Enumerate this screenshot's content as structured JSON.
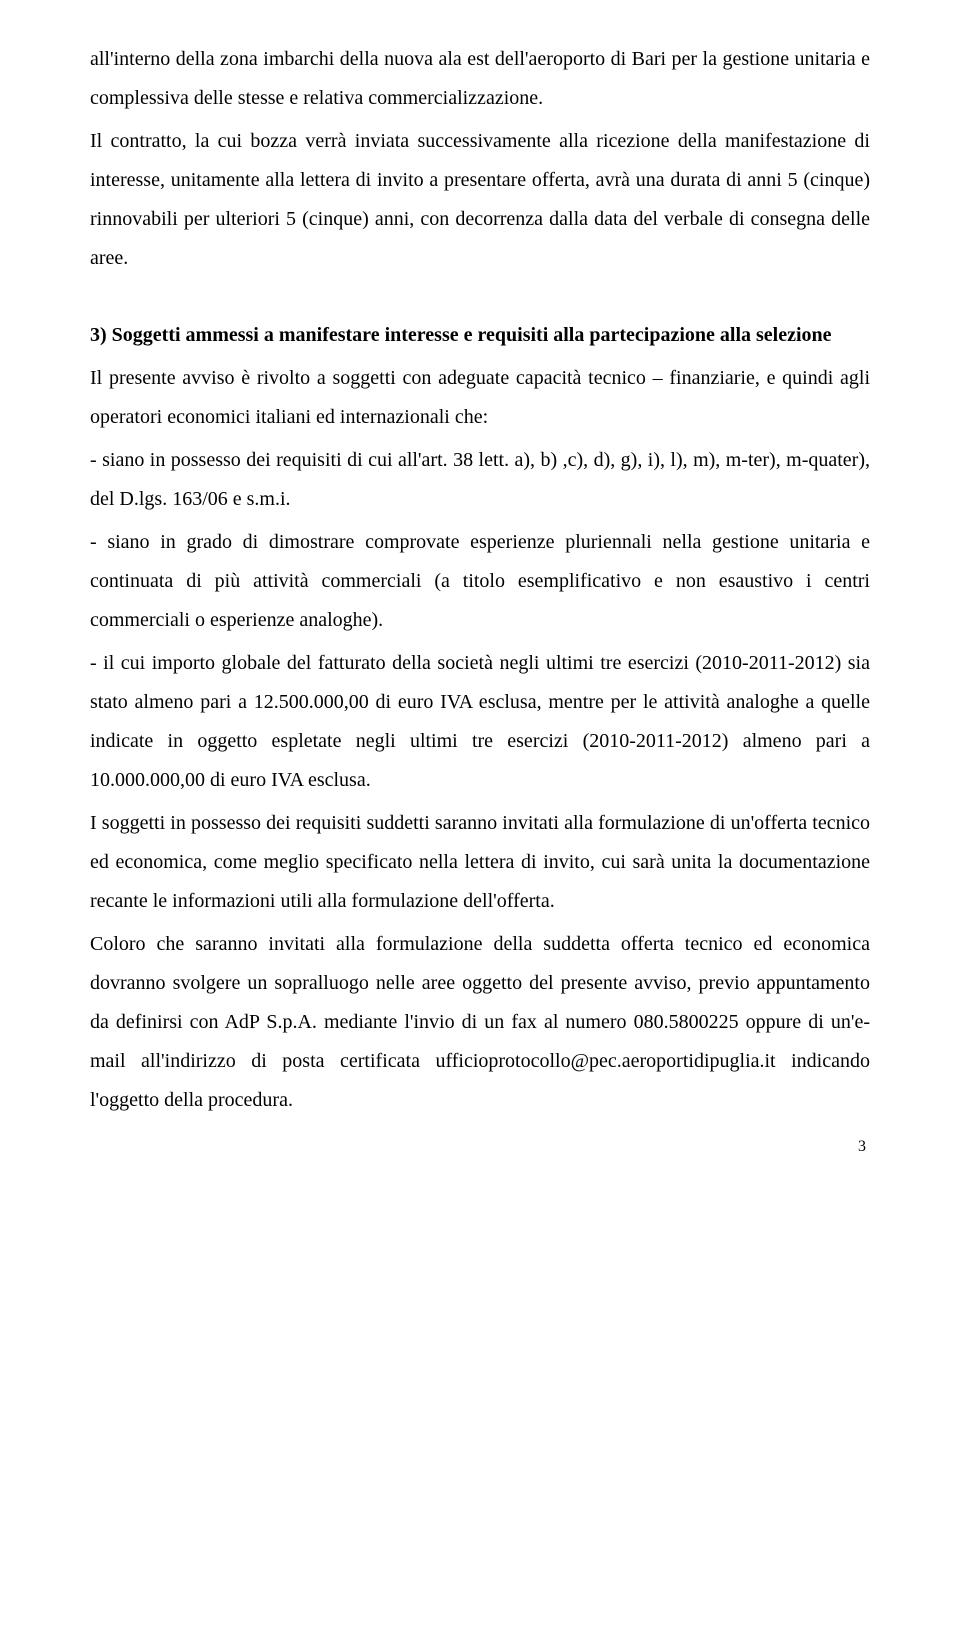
{
  "para1": "all'interno della zona imbarchi della nuova ala est dell'aeroporto di Bari per la gestione unitaria e complessiva delle stesse e relativa commercializzazione.",
  "para2": "Il contratto, la cui bozza verrà inviata successivamente alla ricezione della manifestazione di interesse, unitamente alla lettera di invito a presentare offerta, avrà una durata di anni 5 (cinque) rinnovabili per ulteriori 5 (cinque) anni, con decorrenza dalla data del verbale di consegna delle aree.",
  "sec3_title": "3) Soggetti ammessi a manifestare interesse e requisiti alla partecipazione alla selezione",
  "sec3_p1": "Il presente avviso è rivolto a soggetti con adeguate capacità tecnico – finanziarie, e quindi agli operatori economici italiani ed internazionali che:",
  "sec3_b1": "- siano in possesso dei requisiti di cui all'art. 38 lett. a), b) ,c), d), g), i), l), m), m-ter), m-quater), del D.lgs. 163/06 e s.m.i.",
  "sec3_b2": "- siano in grado di dimostrare comprovate esperienze pluriennali nella gestione unitaria e continuata di più attività commerciali (a titolo esemplificativo e non esaustivo i centri commerciali o esperienze analoghe).",
  "sec3_b3": "- il cui importo globale del fatturato della società negli ultimi tre esercizi (2010-2011-2012) sia stato almeno pari a 12.500.000,00 di euro IVA esclusa, mentre per le attività analoghe a quelle indicate in oggetto espletate negli ultimi tre esercizi (2010-2011-2012) almeno pari a 10.000.000,00 di euro IVA esclusa.",
  "sec3_p2": "I soggetti in possesso dei requisiti suddetti saranno invitati alla formulazione di un'offerta tecnico ed economica, come meglio specificato nella lettera di invito, cui sarà unita la documentazione recante le informazioni utili alla formulazione dell'offerta.",
  "sec3_p3": "Coloro che saranno invitati alla formulazione della suddetta offerta tecnico ed economica dovranno svolgere un sopralluogo nelle aree oggetto del presente avviso, previo appuntamento da definirsi con AdP S.p.A. mediante l'invio di un fax al numero 080.5800225 oppure di un'e-mail all'indirizzo di posta certificata ufficioprotocollo@pec.aeroportidipuglia.it indicando l'oggetto della procedura.",
  "page_number": "3"
}
